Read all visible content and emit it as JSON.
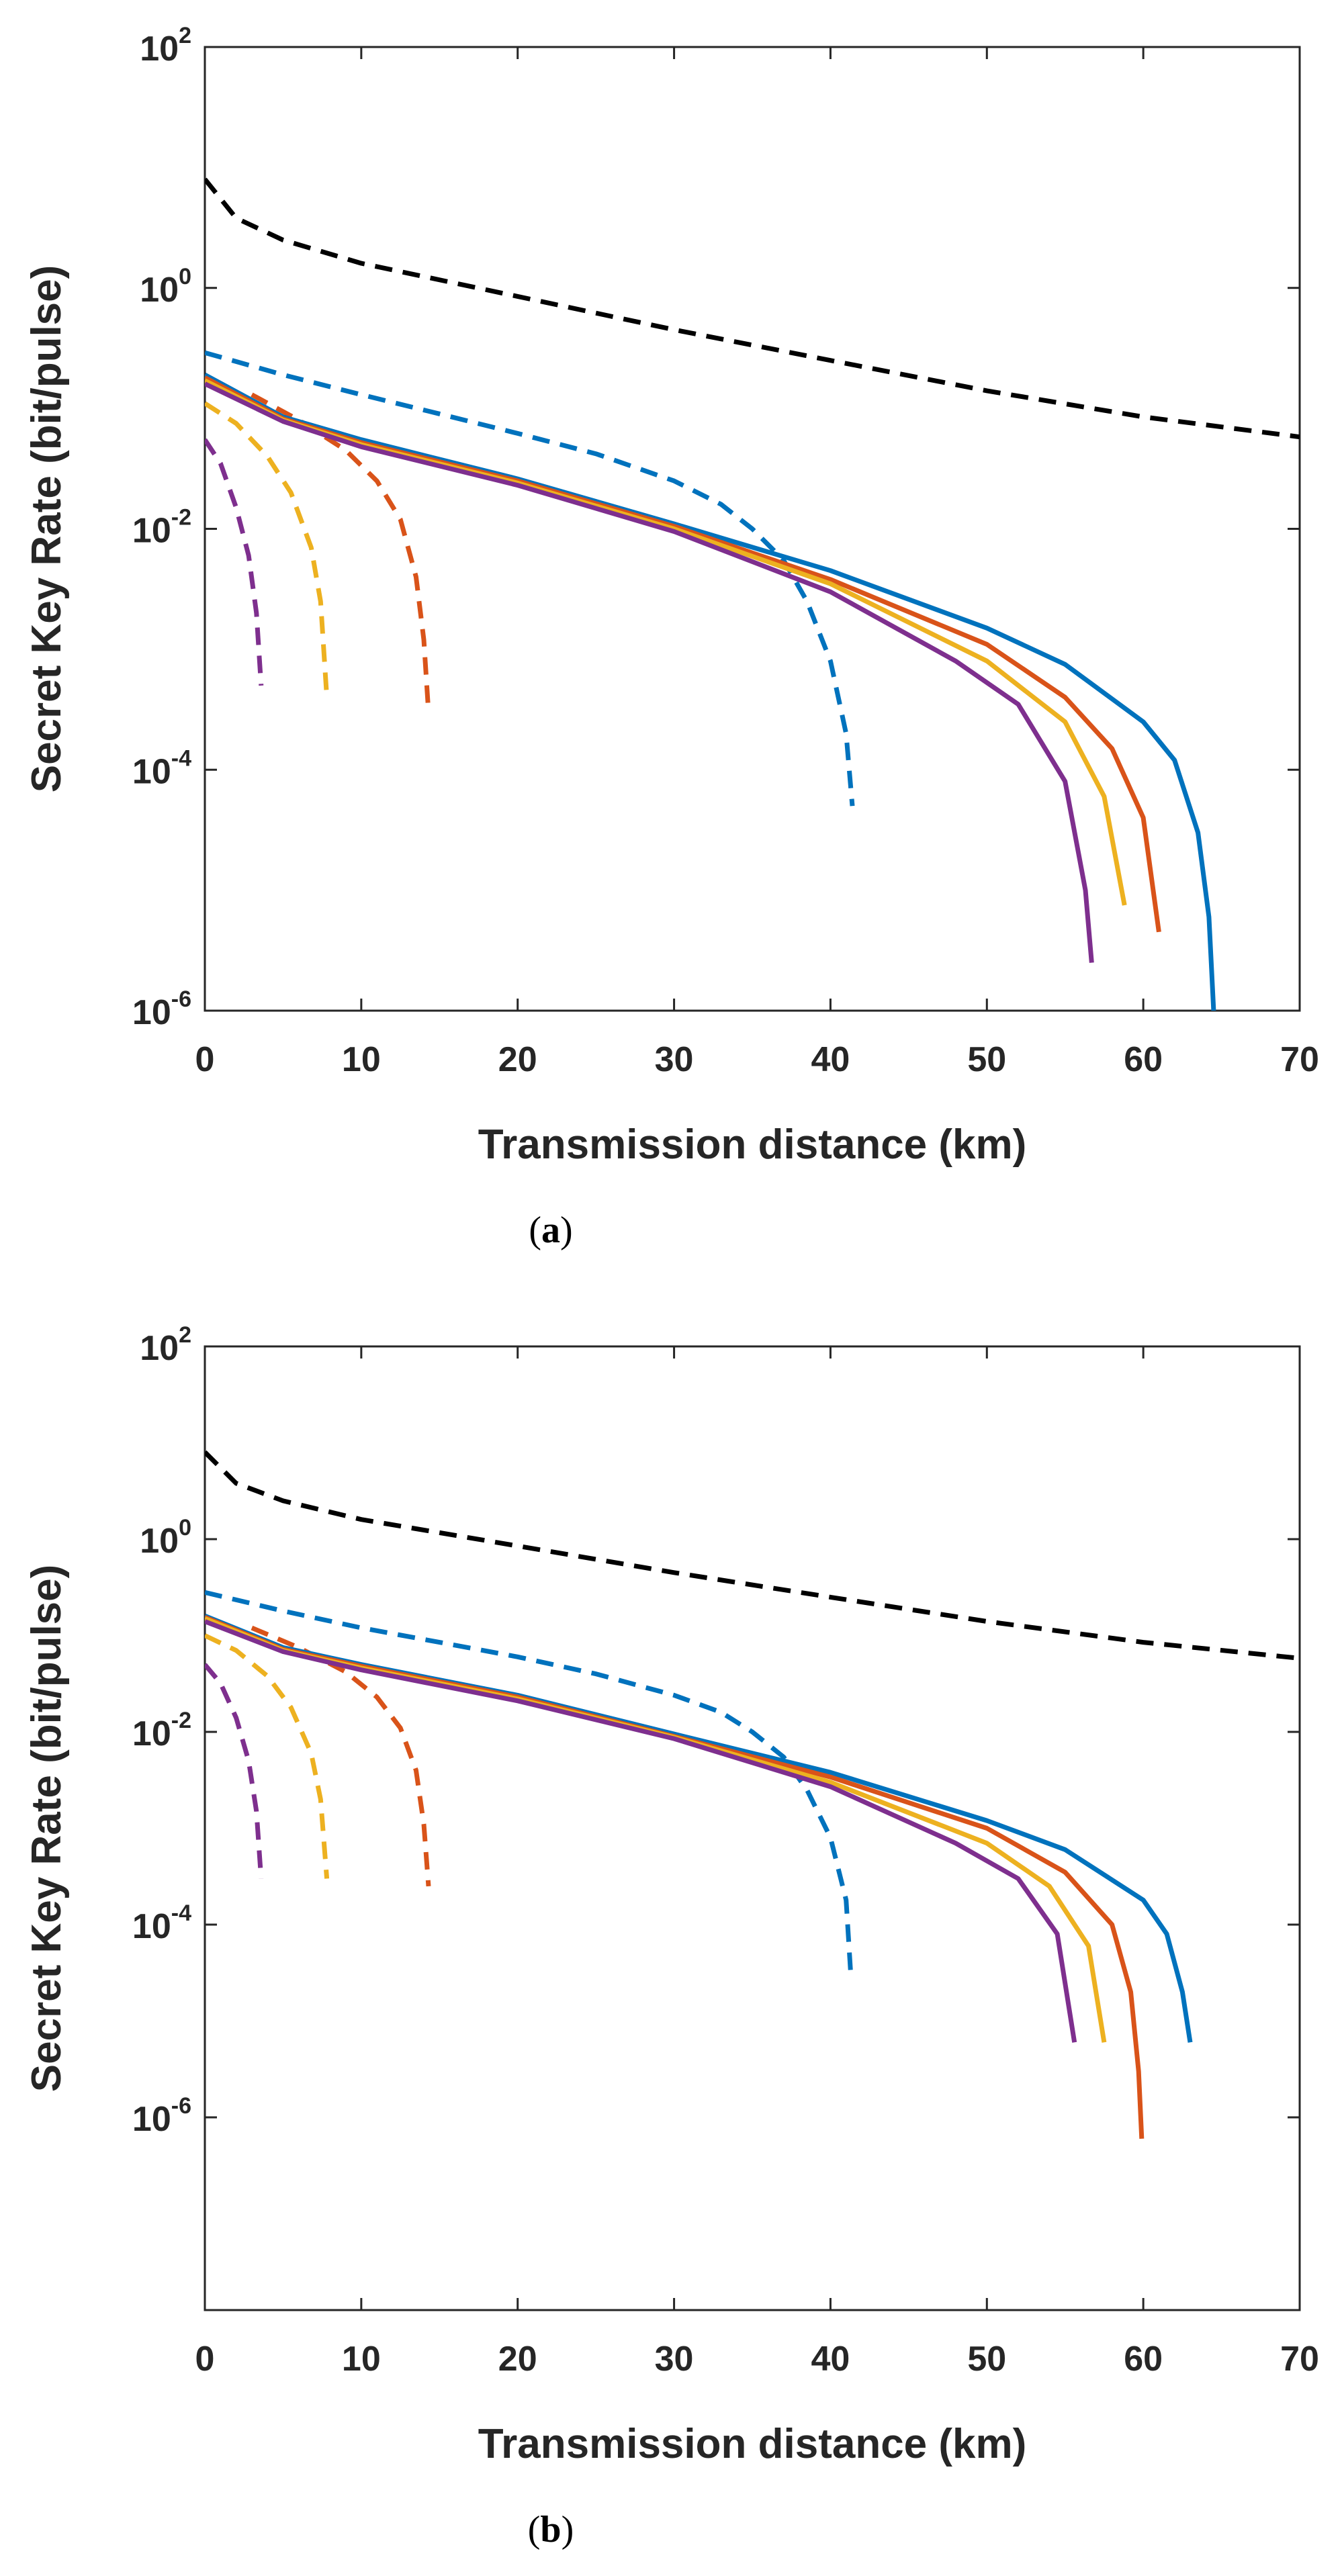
{
  "chart_data": [
    {
      "type": "line",
      "panel": "(a)",
      "caption_open": "(",
      "caption_letter": "a",
      "caption_close": ")",
      "xlabel": "Transmission distance (km)",
      "ylabel": "Secret Key Rate (bit/pulse)",
      "xlim": [
        0,
        70
      ],
      "ylim_exp": [
        -6,
        2
      ],
      "x_ticks": [
        "0",
        "10",
        "20",
        "30",
        "40",
        "50",
        "60",
        "70"
      ],
      "y_ticks": [
        {
          "base": "10",
          "exp": "2"
        },
        {
          "base": "10",
          "exp": "0"
        },
        {
          "base": "10",
          "exp": "-2"
        },
        {
          "base": "10",
          "exp": "-4"
        },
        {
          "base": "10",
          "exp": "-6"
        }
      ],
      "yscale": "log",
      "series": [
        {
          "name": "black-dashed",
          "color": "#000000",
          "style": "dashed",
          "points": [
            [
              0,
              8
            ],
            [
              2,
              3.8
            ],
            [
              5,
              2.5
            ],
            [
              10,
              1.6
            ],
            [
              20,
              0.85
            ],
            [
              30,
              0.45
            ],
            [
              40,
              0.25
            ],
            [
              50,
              0.14
            ],
            [
              60,
              0.085
            ],
            [
              70,
              0.058
            ]
          ]
        },
        {
          "name": "blue-dashed",
          "color": "#0072BD",
          "style": "dashed",
          "points": [
            [
              0,
              0.29
            ],
            [
              5,
              0.19
            ],
            [
              10,
              0.13
            ],
            [
              15,
              0.09
            ],
            [
              20,
              0.062
            ],
            [
              25,
              0.042
            ],
            [
              30,
              0.025
            ],
            [
              33,
              0.016
            ],
            [
              35,
              0.01
            ],
            [
              37,
              0.0055
            ],
            [
              38.5,
              0.0025
            ],
            [
              40,
              0.0008
            ],
            [
              41,
              0.0002
            ],
            [
              41.4,
              5e-05
            ]
          ]
        },
        {
          "name": "red-dashed",
          "color": "#D95319",
          "style": "dashed",
          "points": [
            [
              3,
              0.13
            ],
            [
              6,
              0.08
            ],
            [
              9,
              0.045
            ],
            [
              11,
              0.025
            ],
            [
              12.5,
              0.012
            ],
            [
              13.5,
              0.004
            ],
            [
              14,
              0.0012
            ],
            [
              14.3,
              0.0003
            ]
          ]
        },
        {
          "name": "yellow-dashed",
          "color": "#EDB120",
          "style": "dashed",
          "points": [
            [
              0,
              0.11
            ],
            [
              2,
              0.075
            ],
            [
              4,
              0.04
            ],
            [
              5.5,
              0.02
            ],
            [
              6.8,
              0.007
            ],
            [
              7.4,
              0.0025
            ],
            [
              7.8,
              0.0004
            ]
          ]
        },
        {
          "name": "purple-dashed",
          "color": "#7E2F8E",
          "style": "dashed",
          "points": [
            [
              0,
              0.055
            ],
            [
              1,
              0.035
            ],
            [
              2,
              0.015
            ],
            [
              2.8,
              0.006
            ],
            [
              3.3,
              0.002
            ],
            [
              3.6,
              0.0005
            ]
          ]
        },
        {
          "name": "blue-solid",
          "color": "#0072BD",
          "style": "solid",
          "points": [
            [
              0,
              0.19
            ],
            [
              5,
              0.085
            ],
            [
              10,
              0.055
            ],
            [
              20,
              0.026
            ],
            [
              30,
              0.011
            ],
            [
              40,
              0.0045
            ],
            [
              50,
              0.0015
            ],
            [
              55,
              0.00075
            ],
            [
              60,
              0.00025
            ],
            [
              62,
              0.00012
            ],
            [
              63.5,
              3e-05
            ],
            [
              64.2,
              6e-06
            ],
            [
              64.5,
              1e-06
            ]
          ]
        },
        {
          "name": "red-solid",
          "color": "#D95319",
          "style": "solid",
          "points": [
            [
              0,
              0.18
            ],
            [
              5,
              0.082
            ],
            [
              10,
              0.052
            ],
            [
              20,
              0.025
            ],
            [
              30,
              0.0105
            ],
            [
              40,
              0.0038
            ],
            [
              50,
              0.0011
            ],
            [
              55,
              0.0004
            ],
            [
              58,
              0.00015
            ],
            [
              60,
              4e-05
            ],
            [
              61,
              4.5e-06
            ]
          ]
        },
        {
          "name": "yellow-solid",
          "color": "#EDB120",
          "style": "solid",
          "points": [
            [
              0,
              0.17
            ],
            [
              5,
              0.08
            ],
            [
              10,
              0.05
            ],
            [
              20,
              0.024
            ],
            [
              30,
              0.01
            ],
            [
              40,
              0.0035
            ],
            [
              50,
              0.0008
            ],
            [
              55,
              0.00025
            ],
            [
              57.5,
              6e-05
            ],
            [
              58.8,
              7.5e-06
            ]
          ]
        },
        {
          "name": "purple-solid",
          "color": "#7E2F8E",
          "style": "solid",
          "points": [
            [
              0,
              0.16
            ],
            [
              5,
              0.078
            ],
            [
              10,
              0.048
            ],
            [
              20,
              0.023
            ],
            [
              30,
              0.0095
            ],
            [
              40,
              0.003
            ],
            [
              48,
              0.0008
            ],
            [
              52,
              0.00035
            ],
            [
              55,
              8e-05
            ],
            [
              56.3,
              1e-05
            ],
            [
              56.7,
              2.5e-06
            ]
          ]
        }
      ]
    },
    {
      "type": "line",
      "panel": "(b)",
      "caption_open": "(",
      "caption_letter": "b",
      "caption_close": ")",
      "xlabel": "Transmission distance (km)",
      "ylabel": "Secret Key Rate (bit/pulse)",
      "xlim": [
        0,
        70
      ],
      "ylim_exp": [
        -8,
        2
      ],
      "x_ticks": [
        "0",
        "10",
        "20",
        "30",
        "40",
        "50",
        "60",
        "70"
      ],
      "y_ticks": [
        {
          "base": "10",
          "exp": "2"
        },
        {
          "base": "10",
          "exp": "0"
        },
        {
          "base": "10",
          "exp": "-2"
        },
        {
          "base": "10",
          "exp": "-4"
        },
        {
          "base": "10",
          "exp": "-6"
        }
      ],
      "yscale": "log",
      "series": [
        {
          "name": "black-dashed",
          "color": "#000000",
          "style": "dashed",
          "points": [
            [
              0,
              8
            ],
            [
              2,
              3.8
            ],
            [
              5,
              2.5
            ],
            [
              10,
              1.6
            ],
            [
              20,
              0.85
            ],
            [
              30,
              0.45
            ],
            [
              40,
              0.25
            ],
            [
              50,
              0.14
            ],
            [
              60,
              0.085
            ],
            [
              70,
              0.058
            ]
          ]
        },
        {
          "name": "blue-dashed",
          "color": "#0072BD",
          "style": "dashed",
          "points": [
            [
              0,
              0.28
            ],
            [
              5,
              0.18
            ],
            [
              10,
              0.12
            ],
            [
              15,
              0.085
            ],
            [
              20,
              0.06
            ],
            [
              25,
              0.04
            ],
            [
              30,
              0.024
            ],
            [
              33,
              0.016
            ],
            [
              35,
              0.01
            ],
            [
              37,
              0.0055
            ],
            [
              38.5,
              0.0025
            ],
            [
              40,
              0.0008
            ],
            [
              41,
              0.00018
            ],
            [
              41.3,
              3e-05
            ]
          ]
        },
        {
          "name": "red-dashed",
          "color": "#D95319",
          "style": "dashed",
          "points": [
            [
              3,
              0.12
            ],
            [
              6,
              0.075
            ],
            [
              9,
              0.042
            ],
            [
              11,
              0.023
            ],
            [
              12.5,
              0.011
            ],
            [
              13.5,
              0.004
            ],
            [
              14,
              0.0011
            ],
            [
              14.3,
              0.00025
            ]
          ]
        },
        {
          "name": "yellow-dashed",
          "color": "#EDB120",
          "style": "dashed",
          "points": [
            [
              0,
              0.1
            ],
            [
              2,
              0.07
            ],
            [
              4,
              0.038
            ],
            [
              5.5,
              0.018
            ],
            [
              6.8,
              0.006
            ],
            [
              7.4,
              0.002
            ],
            [
              7.8,
              0.0003
            ]
          ]
        },
        {
          "name": "purple-dashed",
          "color": "#7E2F8E",
          "style": "dashed",
          "points": [
            [
              0,
              0.05
            ],
            [
              1,
              0.032
            ],
            [
              2,
              0.014
            ],
            [
              2.8,
              0.005
            ],
            [
              3.3,
              0.0015
            ],
            [
              3.6,
              0.0003
            ]
          ]
        },
        {
          "name": "blue-solid",
          "color": "#0072BD",
          "style": "solid",
          "points": [
            [
              0,
              0.16
            ],
            [
              5,
              0.075
            ],
            [
              10,
              0.05
            ],
            [
              20,
              0.024
            ],
            [
              30,
              0.0095
            ],
            [
              40,
              0.0038
            ],
            [
              50,
              0.0012
            ],
            [
              55,
              0.0006
            ],
            [
              60,
              0.00018
            ],
            [
              61.5,
              8e-05
            ],
            [
              62.5,
              2e-05
            ],
            [
              63,
              6e-06
            ]
          ]
        },
        {
          "name": "red-solid",
          "color": "#D95319",
          "style": "solid",
          "points": [
            [
              0,
              0.155
            ],
            [
              5,
              0.072
            ],
            [
              10,
              0.048
            ],
            [
              20,
              0.023
            ],
            [
              30,
              0.009
            ],
            [
              40,
              0.0034
            ],
            [
              50,
              0.001
            ],
            [
              55,
              0.00035
            ],
            [
              58,
              0.0001
            ],
            [
              59.2,
              2e-05
            ],
            [
              59.7,
              3e-06
            ],
            [
              59.9,
              6e-07
            ]
          ]
        },
        {
          "name": "yellow-solid",
          "color": "#EDB120",
          "style": "solid",
          "points": [
            [
              0,
              0.15
            ],
            [
              5,
              0.07
            ],
            [
              10,
              0.046
            ],
            [
              20,
              0.022
            ],
            [
              30,
              0.0088
            ],
            [
              40,
              0.003
            ],
            [
              50,
              0.0007
            ],
            [
              54,
              0.00025
            ],
            [
              56.5,
              6e-05
            ],
            [
              57.5,
              6e-06
            ]
          ]
        },
        {
          "name": "purple-solid",
          "color": "#7E2F8E",
          "style": "solid",
          "points": [
            [
              0,
              0.14
            ],
            [
              5,
              0.068
            ],
            [
              10,
              0.044
            ],
            [
              20,
              0.021
            ],
            [
              30,
              0.0085
            ],
            [
              40,
              0.0027
            ],
            [
              48,
              0.0007
            ],
            [
              52,
              0.0003
            ],
            [
              54.5,
              8e-05
            ],
            [
              55.6,
              6e-06
            ]
          ]
        }
      ]
    }
  ]
}
